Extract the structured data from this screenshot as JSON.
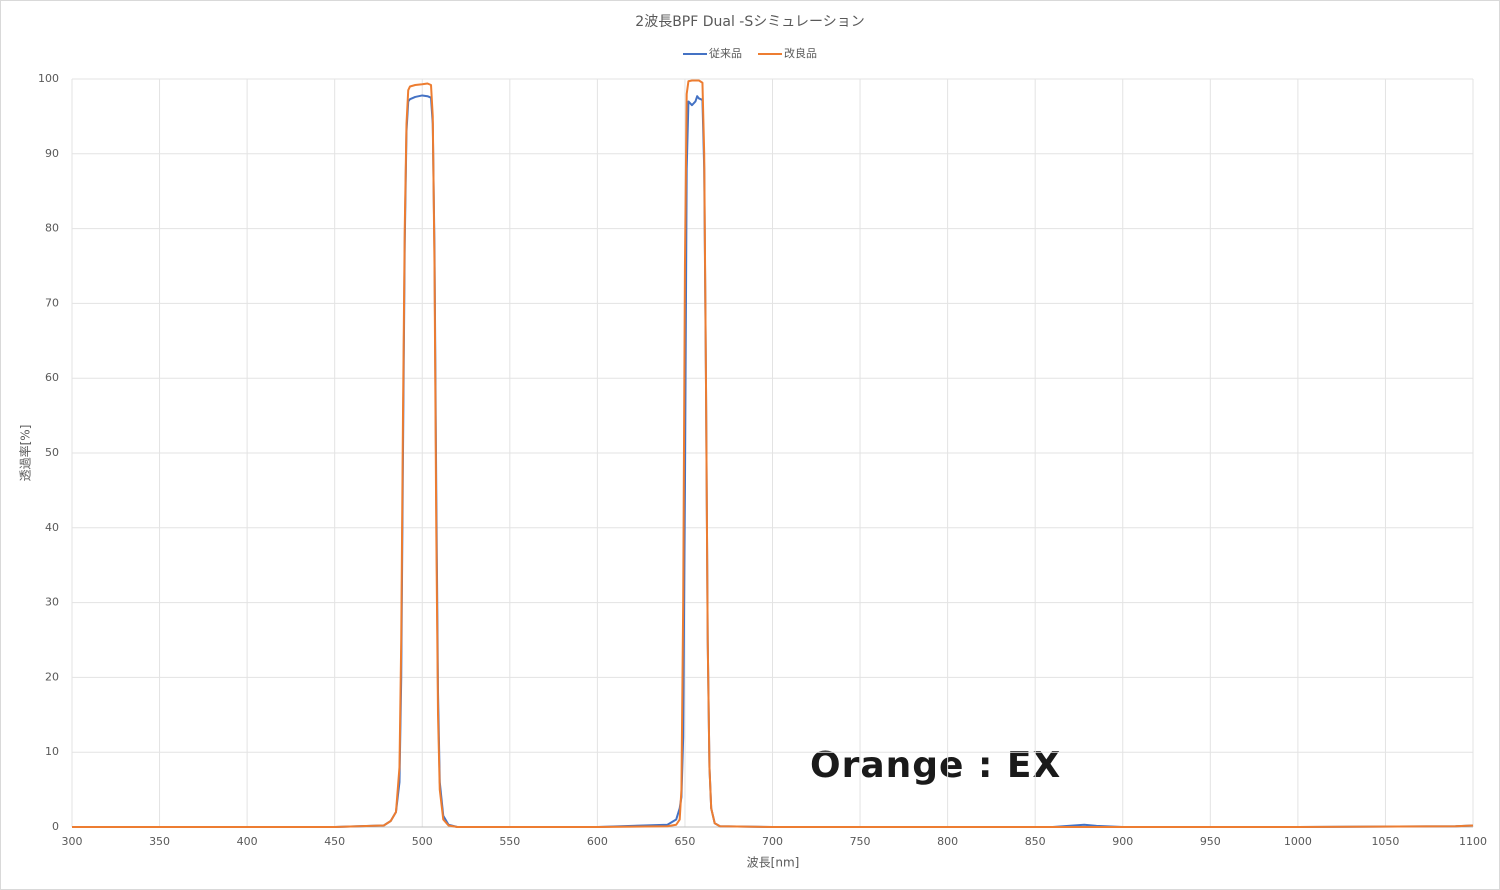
{
  "chart_data": {
    "type": "line",
    "title": "2波長BPF Dual -Sシミュレーション",
    "x_label": "波長[nm]",
    "y_label": "透過率[%]",
    "annotation": "Orange : EX",
    "x": [
      300,
      450,
      478,
      482,
      485,
      487,
      488,
      489,
      490,
      491,
      492,
      493,
      496,
      500,
      503,
      505,
      506,
      507,
      508,
      509,
      510,
      512,
      515,
      520,
      600,
      640,
      645,
      647,
      648,
      649,
      650,
      651,
      652,
      654,
      656,
      657,
      658,
      660,
      661,
      662,
      663,
      664,
      665,
      667,
      670,
      700,
      860,
      878,
      885,
      900,
      1000,
      1090,
      1100
    ],
    "series": [
      {
        "name": "従来品",
        "color": "#4472c4",
        "values": [
          0,
          0,
          0.2,
          0.8,
          2,
          6,
          20,
          50,
          78,
          93,
          97,
          97.3,
          97.6,
          97.8,
          97.7,
          97.5,
          94,
          77,
          45,
          18,
          6,
          1.5,
          0.3,
          0,
          0,
          0.3,
          1,
          2.5,
          4,
          12,
          45,
          88,
          97,
          96.5,
          97,
          97.7,
          97.4,
          97.2,
          88,
          60,
          25,
          8,
          2.5,
          0.5,
          0.1,
          0,
          0,
          0.3,
          0.15,
          0,
          0,
          0.1,
          0.2
        ]
      },
      {
        "name": "改良品",
        "color": "#ed7d31",
        "values": [
          0,
          0,
          0.2,
          0.8,
          2,
          8,
          25,
          55,
          80,
          94,
          98.5,
          99,
          99.2,
          99.3,
          99.4,
          99.2,
          95,
          75,
          40,
          15,
          5,
          1,
          0.2,
          0,
          0,
          0.1,
          0.3,
          1,
          5,
          30,
          75,
          98,
          99.7,
          99.8,
          99.8,
          99.8,
          99.8,
          99.5,
          90,
          60,
          25,
          8,
          2.5,
          0.5,
          0.1,
          0,
          0,
          0,
          0,
          0,
          0,
          0.1,
          0.2
        ]
      }
    ],
    "xlim": [
      300,
      1100
    ],
    "xticks": [
      300,
      350,
      400,
      450,
      500,
      550,
      600,
      650,
      700,
      750,
      800,
      850,
      900,
      950,
      1000,
      1050,
      1100
    ],
    "ylim": [
      0,
      100
    ],
    "yticks": [
      0,
      10,
      20,
      30,
      40,
      50,
      60,
      70,
      80,
      90,
      100
    ],
    "grid": true,
    "legend": "top"
  }
}
